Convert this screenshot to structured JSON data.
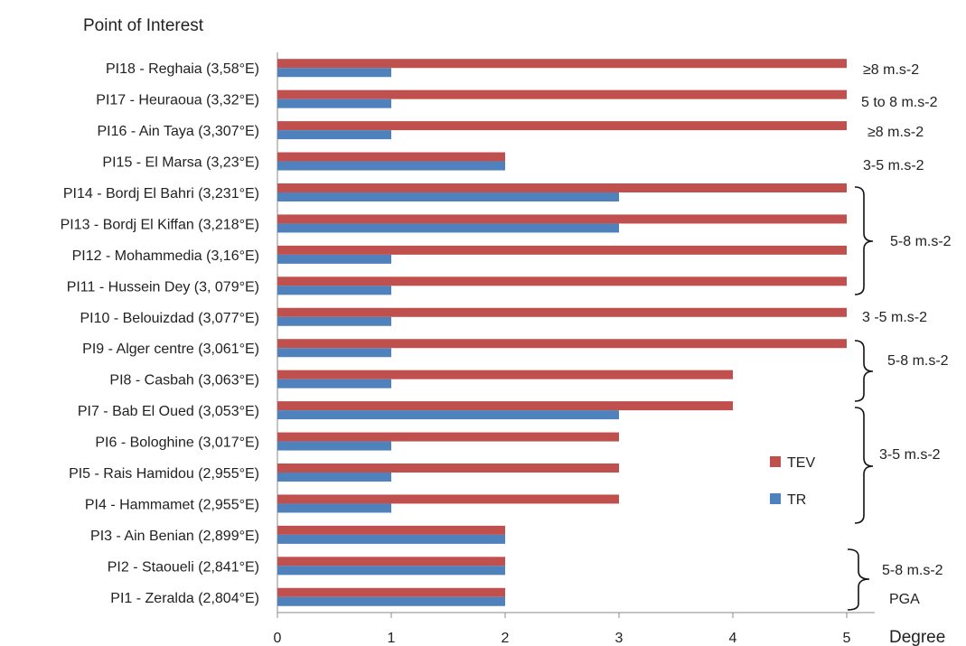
{
  "chart_data": {
    "type": "bar",
    "orientation": "horizontal",
    "title": "Point of Interest",
    "xlabel": "Degree",
    "xlim": [
      0,
      5
    ],
    "xticks": [
      "0",
      "1",
      "2",
      "3",
      "4",
      "5"
    ],
    "grid": false,
    "legend_position": "right",
    "categories": [
      "PI1 - Zeralda (2,804°E)",
      "PI2 - Staoueli (2,841°E)",
      "PI3 - Ain Benian (2,899°E)",
      "PI4 - Hammamet (2,955°E)",
      "PI5 - Rais Hamidou (2,955°E)",
      "PI6  - Bologhine (3,017°E)",
      "PI7 - Bab El Oued (3,053°E)",
      "PI8 - Casbah (3,063°E)",
      "PI9 - Alger centre (3,061°E)",
      "PI10 - Belouizdad (3,077°E)",
      "PI11 - Hussein  Dey (3, 079°E)",
      "PI12 - Mohammedia (3,16°E)",
      "PI13 - Bordj El Kiffan (3,218°E)",
      "PI14 - Bordj El Bahri (3,231°E)",
      "PI15 - El Marsa (3,23°E)",
      "PI16 - Ain Taya (3,307°E)",
      "PI17 - Heuraoua (3,32°E)",
      "PI18 - Reghaia (3,58°E)"
    ],
    "series": [
      {
        "name": "TEV",
        "color": "#c0504d",
        "values": [
          2,
          2,
          2,
          3,
          3,
          3,
          4,
          4,
          5,
          5,
          5,
          5,
          5,
          5,
          2,
          5,
          5,
          5
        ]
      },
      {
        "name": "TR",
        "color": "#4f81bd",
        "values": [
          2,
          2,
          2,
          1,
          1,
          1,
          3,
          1,
          1,
          1,
          1,
          1,
          3,
          3,
          2,
          1,
          1,
          1
        ]
      }
    ],
    "annotations": [
      {
        "text": "≥8 m.s-2"
      },
      {
        "text": "5 to 8 m.s-2"
      },
      {
        "text": "≥8 m.s-2"
      },
      {
        "text": "3-5 m.s-2"
      },
      {
        "text": "5-8 m.s-2"
      },
      {
        "text": "3 -5 m.s-2"
      },
      {
        "text": "5-8 m.s-2"
      },
      {
        "text": "3-5 m.s-2"
      },
      {
        "text": "5-8 m.s-2"
      },
      {
        "text": "PGA"
      }
    ]
  }
}
